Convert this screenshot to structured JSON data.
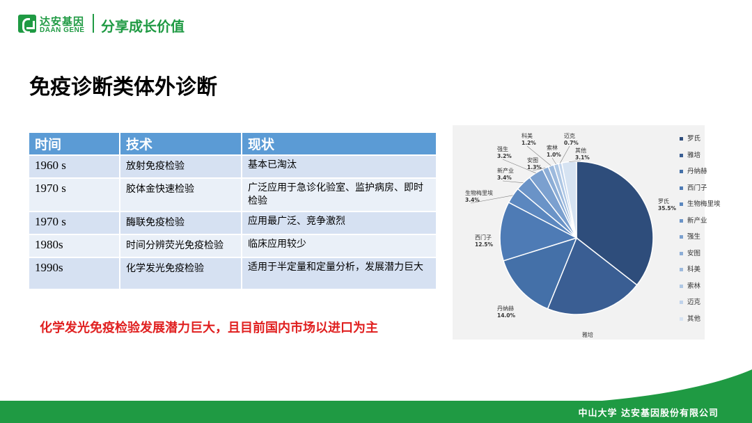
{
  "brand": {
    "name_cn": "达安基因",
    "name_en": "DAAN GENE",
    "slogan": "分享成长价值",
    "color": "#1f9a43"
  },
  "page": {
    "title": "免疫诊断类体外诊断",
    "highlight": "化学发光免疫检验发展潜力巨大，且目前国内市场以进口为主",
    "highlight_color": "#e02020"
  },
  "table": {
    "headers": [
      "时间",
      "技术",
      "现状"
    ],
    "header_color": "#5b9bd5",
    "rows": [
      [
        "1960 s",
        "放射免疫检验",
        "基本已淘汰"
      ],
      [
        "1970 s",
        "胶体金快速检验",
        "广泛应用于急诊化验室、监护病房、即时检验"
      ],
      [
        "1970 s",
        "酶联免疫检验",
        "应用最广泛、竞争激烈"
      ],
      [
        "1980s",
        "时间分辨荧光免疫检验",
        "临床应用较少"
      ],
      [
        "1990s",
        "化学发光免疫检验",
        "适用于半定量和定量分析，发展潜力巨大"
      ]
    ]
  },
  "chart_data": {
    "type": "pie",
    "title": "",
    "legend_position": "right",
    "slices": [
      {
        "name": "罗氏",
        "value": 35.5,
        "label": "35.5%",
        "color": "#2e4d7b"
      },
      {
        "name": "雅培",
        "value": 20.6,
        "label": "20.6%",
        "color": "#3a5e93"
      },
      {
        "name": "丹纳赫",
        "value": 14.0,
        "label": "14.0%",
        "color": "#4470a8"
      },
      {
        "name": "西门子",
        "value": 12.5,
        "label": "12.5%",
        "color": "#4e7bb5"
      },
      {
        "name": "生物梅里埃",
        "value": 3.4,
        "label": "3.4%",
        "color": "#5b87bf"
      },
      {
        "name": "新产业",
        "value": 3.4,
        "label": "3.4%",
        "color": "#6a93c7"
      },
      {
        "name": "强生",
        "value": 3.2,
        "label": "3.2%",
        "color": "#7ba0cf"
      },
      {
        "name": "安图",
        "value": 1.3,
        "label": "1.3%",
        "color": "#8cadd6"
      },
      {
        "name": "科美",
        "value": 1.2,
        "label": "1.2%",
        "color": "#9dbadd"
      },
      {
        "name": "索林",
        "value": 1.0,
        "label": "1.0%",
        "color": "#aec7e4"
      },
      {
        "name": "迈克",
        "value": 0.7,
        "label": "0.7%",
        "color": "#c0d3eb"
      },
      {
        "name": "其他",
        "value": 3.1,
        "label": "3.1%",
        "color": "#d6e3f2"
      }
    ]
  },
  "footer": {
    "text": "中山大学 达安基因股份有限公司"
  }
}
